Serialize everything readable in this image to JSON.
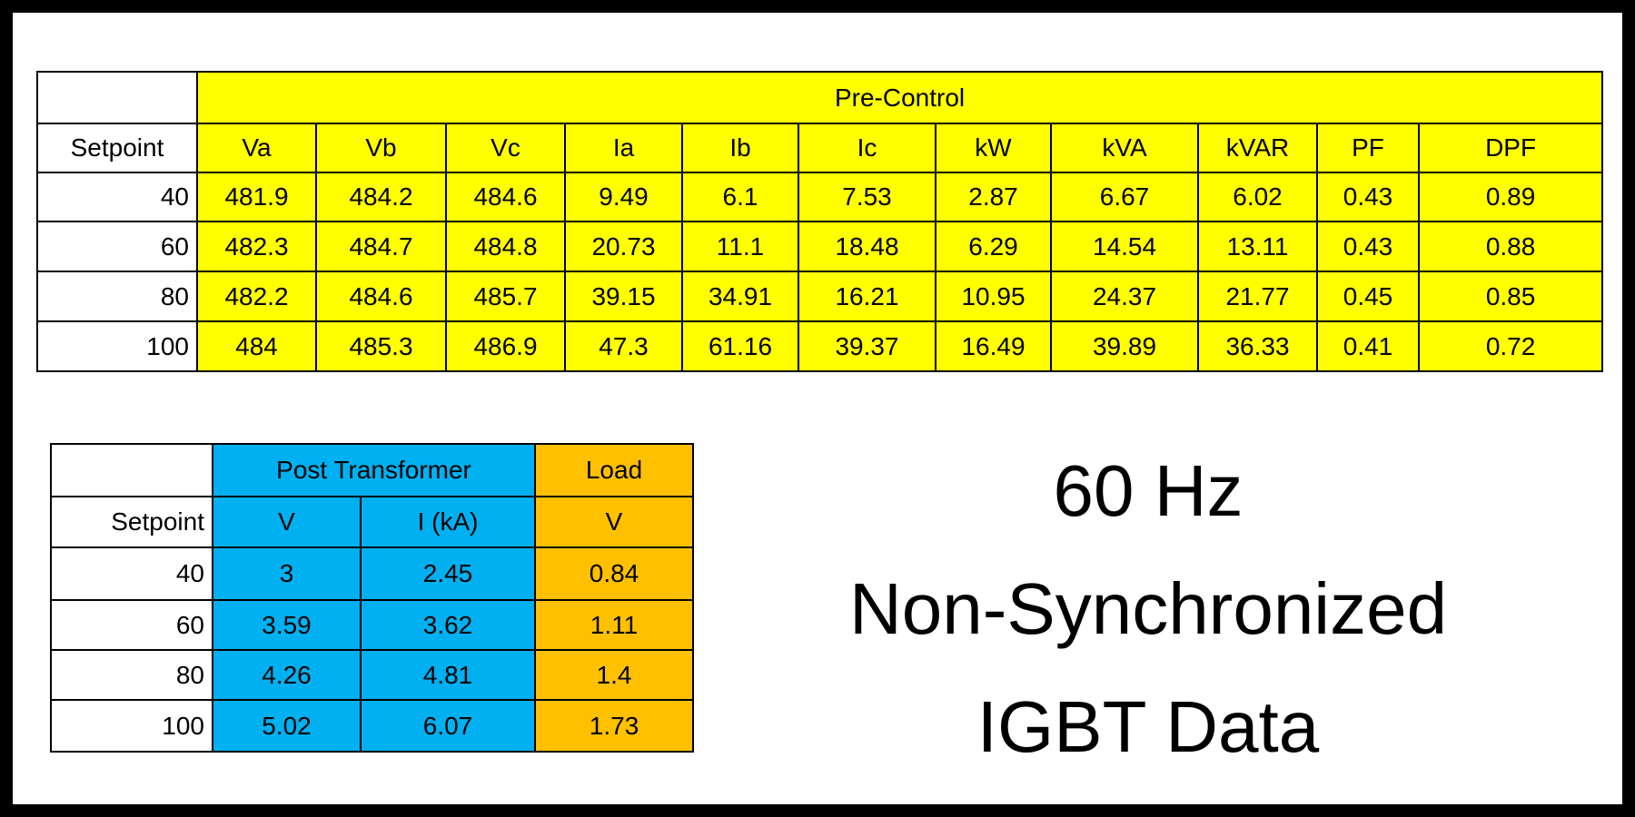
{
  "pre_control_table": {
    "group_header": "Pre-Control",
    "columns": [
      "Setpoint",
      "Va",
      "Vb",
      "Vc",
      "Ia",
      "Ib",
      "Ic",
      "kW",
      "kVA",
      "kVAR",
      "PF",
      "DPF"
    ],
    "rows": [
      [
        "40",
        "481.9",
        "484.2",
        "484.6",
        "9.49",
        "6.1",
        "7.53",
        "2.87",
        "6.67",
        "6.02",
        "0.43",
        "0.89"
      ],
      [
        "60",
        "482.3",
        "484.7",
        "484.8",
        "20.73",
        "11.1",
        "18.48",
        "6.29",
        "14.54",
        "13.11",
        "0.43",
        "0.88"
      ],
      [
        "80",
        "482.2",
        "484.6",
        "485.7",
        "39.15",
        "34.91",
        "16.21",
        "10.95",
        "24.37",
        "21.77",
        "0.45",
        "0.85"
      ],
      [
        "100",
        "484",
        "485.3",
        "486.9",
        "47.3",
        "61.16",
        "39.37",
        "16.49",
        "39.89",
        "36.33",
        "0.41",
        "0.72"
      ]
    ]
  },
  "post_table": {
    "group_headers": [
      "Post Transformer",
      "Load"
    ],
    "columns": [
      "Setpoint",
      "V",
      "I (kA)",
      "V"
    ],
    "rows": [
      [
        "40",
        "3",
        "2.45",
        "0.84"
      ],
      [
        "60",
        "3.59",
        "3.62",
        "1.11"
      ],
      [
        "80",
        "4.26",
        "4.81",
        "1.4"
      ],
      [
        "100",
        "5.02",
        "6.07",
        "1.73"
      ]
    ]
  },
  "title_lines": [
    "60 Hz",
    "Non-Synchronized",
    "IGBT Data"
  ]
}
